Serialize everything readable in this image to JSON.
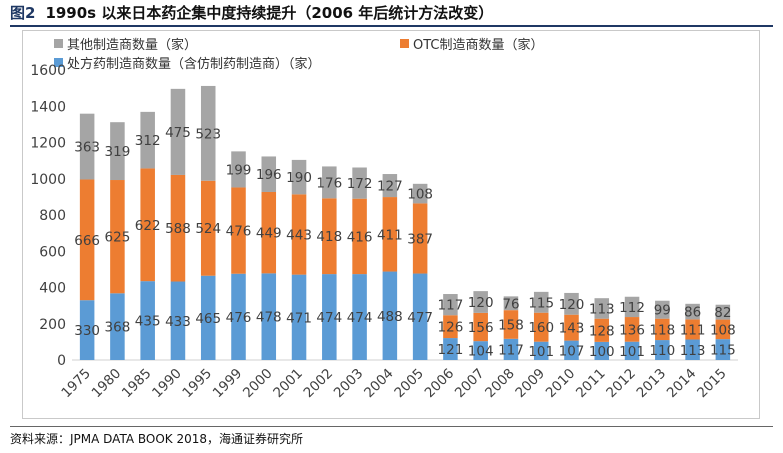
{
  "figure": {
    "label": "图2",
    "title": "1990s 以来日本药企集中度持续提升（2006 年后统计方法改变）"
  },
  "source": "资料来源：JPMA DATA BOOK 2018，海通证券研究所",
  "colors": {
    "other": "#a5a5a5",
    "otc": "#ed7d31",
    "rx": "#5b9bd5",
    "accent": "#1f3864"
  },
  "chart_data": {
    "type": "bar",
    "stacked": true,
    "categories": [
      "1975",
      "1980",
      "1985",
      "1990",
      "1995",
      "1999",
      "2000",
      "2001",
      "2002",
      "2003",
      "2004",
      "2005",
      "2006",
      "2007",
      "2008",
      "2009",
      "2010",
      "2011",
      "2012",
      "2013",
      "2014",
      "2015"
    ],
    "series": [
      {
        "name": "处方药制造商数量（含仿制药制造商）（家）",
        "key": "rx",
        "values": [
          330,
          368,
          435,
          433,
          465,
          476,
          478,
          471,
          474,
          474,
          488,
          477,
          121,
          104,
          117,
          101,
          107,
          100,
          101,
          110,
          113,
          115
        ]
      },
      {
        "name": "OTC制造商数量（家）",
        "key": "otc",
        "values": [
          666,
          625,
          622,
          588,
          524,
          476,
          449,
          443,
          418,
          416,
          411,
          387,
          126,
          156,
          158,
          160,
          143,
          128,
          136,
          118,
          111,
          108
        ]
      },
      {
        "name": "其他制造商数量（家）",
        "key": "other",
        "values": [
          363,
          319,
          312,
          475,
          523,
          199,
          196,
          190,
          176,
          172,
          127,
          108,
          117,
          120,
          76,
          115,
          120,
          113,
          112,
          99,
          86,
          82
        ]
      }
    ],
    "yticks": [
      0,
      200,
      400,
      600,
      800,
      1000,
      1200,
      1400,
      1600
    ],
    "ylim": [
      0,
      1600
    ],
    "grid": false,
    "legend_position": "top-left",
    "xlabel_rotation": -45
  }
}
